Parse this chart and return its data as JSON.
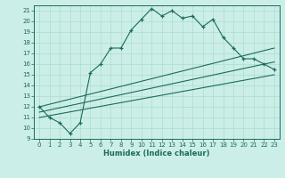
{
  "xlabel": "Humidex (Indice chaleur)",
  "bg_color": "#cceee8",
  "grid_color": "#aaddcc",
  "line_color": "#1a6b5a",
  "xlim": [
    -0.5,
    23.5
  ],
  "ylim": [
    9,
    21.5
  ],
  "yticks": [
    9,
    10,
    11,
    12,
    13,
    14,
    15,
    16,
    17,
    18,
    19,
    20,
    21
  ],
  "xticks": [
    0,
    1,
    2,
    3,
    4,
    5,
    6,
    7,
    8,
    9,
    10,
    11,
    12,
    13,
    14,
    15,
    16,
    17,
    18,
    19,
    20,
    21,
    22,
    23
  ],
  "main_x": [
    0,
    1,
    2,
    3,
    4,
    5,
    6,
    7,
    8,
    9,
    10,
    11,
    12,
    13,
    14,
    15,
    16,
    17,
    18,
    19,
    20,
    21,
    22,
    23
  ],
  "main_y": [
    12,
    11,
    10.5,
    9.5,
    10.5,
    15.2,
    16.0,
    17.5,
    17.5,
    19.2,
    20.2,
    21.2,
    20.5,
    21.0,
    20.3,
    20.5,
    19.5,
    20.2,
    18.5,
    17.5,
    16.5,
    16.5,
    16.0,
    15.5
  ],
  "line1_x": [
    0,
    23
  ],
  "line1_y": [
    11.0,
    15.0
  ],
  "line2_x": [
    0,
    23
  ],
  "line2_y": [
    12.0,
    17.5
  ],
  "line3_x": [
    0,
    23
  ],
  "line3_y": [
    11.5,
    16.2
  ]
}
